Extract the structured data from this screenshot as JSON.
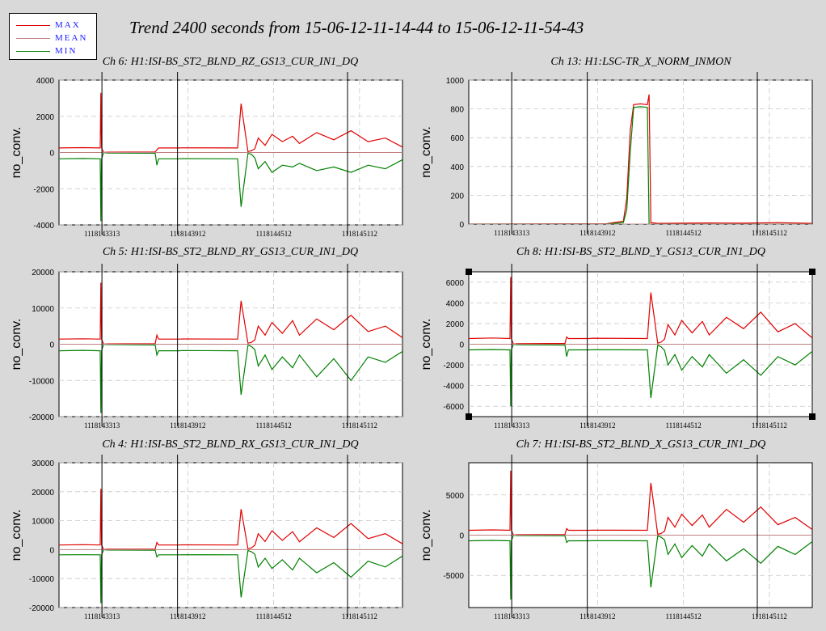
{
  "title": "Trend 2400 seconds from 15-06-12-11-14-44 to 15-06-12-11-54-43",
  "legend": [
    {
      "label": "MAX",
      "color": "#e00000"
    },
    {
      "label": "MEAN",
      "color": "#c08080"
    },
    {
      "label": "MIN",
      "color": "#008000"
    }
  ],
  "colors": {
    "max": "#e00000",
    "mean": "#c08080",
    "min": "#008000",
    "background": "#d9d9d9",
    "grid": "#c8c8c8"
  },
  "chart_data": [
    {
      "type": "line",
      "title": "Ch 6: H1:ISI-BS_ST2_BLND_RZ_GS13_CUR_IN1_DQ",
      "ylabel": "no_conv.",
      "ylim": [
        -4000,
        4000
      ],
      "yticks": [
        "4000",
        "2000",
        "0",
        "-2000",
        "-4000"
      ],
      "xticks": [
        "1118143313",
        "1118143912",
        "1118144512",
        "1118145112"
      ],
      "series": [
        {
          "name": "MAX",
          "x": [
            0,
            0.07,
            0.12,
            0.122,
            0.124,
            0.13,
            0.14,
            0.28,
            0.285,
            0.29,
            0.35,
            0.36,
            0.52,
            0.53,
            0.55,
            0.56,
            0.57,
            0.58,
            0.6,
            0.62,
            0.65,
            0.68,
            0.7,
            0.75,
            0.8,
            0.85,
            0.9,
            0.95,
            1.0
          ],
          "values": [
            250,
            270,
            250,
            3300,
            250,
            0,
            20,
            30,
            150,
            250,
            250,
            260,
            250,
            2700,
            50,
            100,
            200,
            800,
            400,
            1000,
            600,
            900,
            500,
            1100,
            700,
            1200,
            600,
            800,
            300
          ]
        },
        {
          "name": "MIN",
          "x": [
            0,
            0.07,
            0.12,
            0.122,
            0.124,
            0.13,
            0.14,
            0.28,
            0.285,
            0.29,
            0.35,
            0.36,
            0.52,
            0.53,
            0.55,
            0.56,
            0.57,
            0.58,
            0.6,
            0.62,
            0.65,
            0.68,
            0.7,
            0.75,
            0.8,
            0.85,
            0.9,
            0.95,
            1.0
          ],
          "values": [
            -350,
            -330,
            -350,
            -3800,
            -350,
            0,
            -30,
            -40,
            -700,
            -350,
            -350,
            -340,
            -350,
            -3000,
            -50,
            -100,
            -300,
            -900,
            -500,
            -1100,
            -700,
            -800,
            -600,
            -1000,
            -800,
            -1100,
            -700,
            -900,
            -400
          ]
        }
      ]
    },
    {
      "type": "line",
      "title": "Ch 13: H1:LSC-TR_X_NORM_INMON",
      "ylabel": "no_conv.",
      "ylim": [
        0,
        1000
      ],
      "yticks": [
        "1000",
        "800",
        "600",
        "400",
        "200",
        "0"
      ],
      "xticks": [
        "1118143313",
        "1118143912",
        "1118144512",
        "1118145112"
      ],
      "series": [
        {
          "name": "MAX",
          "x": [
            0,
            0.4,
            0.45,
            0.46,
            0.47,
            0.48,
            0.5,
            0.52,
            0.525,
            0.53,
            0.55,
            0.7,
            0.8,
            0.9,
            1.0
          ],
          "values": [
            0,
            2,
            20,
            180,
            650,
            830,
            835,
            830,
            900,
            10,
            5,
            8,
            6,
            10,
            5
          ]
        },
        {
          "name": "MIN",
          "x": [
            0,
            0.4,
            0.45,
            0.46,
            0.47,
            0.48,
            0.5,
            0.52,
            0.525,
            0.53,
            0.55,
            0.7,
            0.8,
            0.9,
            1.0
          ],
          "values": [
            0,
            0,
            10,
            100,
            500,
            810,
            815,
            810,
            0,
            0,
            0,
            0,
            0,
            0,
            0
          ]
        }
      ]
    },
    {
      "type": "line",
      "title": "Ch 5: H1:ISI-BS_ST2_BLND_RY_GS13_CUR_IN1_DQ",
      "ylabel": "no_conv.",
      "ylim": [
        -20000,
        20000
      ],
      "yticks": [
        "20000",
        "10000",
        "0",
        "-10000",
        "-20000"
      ],
      "xticks": [
        "1118143313",
        "1118143912",
        "1118144512",
        "1118145112"
      ],
      "series": [
        {
          "name": "MAX",
          "x": [
            0,
            0.07,
            0.12,
            0.122,
            0.124,
            0.13,
            0.14,
            0.28,
            0.285,
            0.29,
            0.35,
            0.36,
            0.52,
            0.53,
            0.55,
            0.56,
            0.57,
            0.58,
            0.6,
            0.62,
            0.65,
            0.68,
            0.7,
            0.75,
            0.8,
            0.85,
            0.9,
            0.95,
            1.0
          ],
          "values": [
            1400,
            1500,
            1400,
            17000,
            1400,
            0,
            100,
            150,
            2500,
            1400,
            1400,
            1450,
            1400,
            12000,
            300,
            500,
            1200,
            5000,
            2500,
            6000,
            3000,
            6500,
            2500,
            7000,
            4000,
            8000,
            3500,
            5000,
            1800
          ]
        },
        {
          "name": "MIN",
          "x": [
            0,
            0.07,
            0.12,
            0.122,
            0.124,
            0.13,
            0.14,
            0.28,
            0.285,
            0.29,
            0.35,
            0.36,
            0.52,
            0.53,
            0.55,
            0.56,
            0.57,
            0.58,
            0.6,
            0.62,
            0.65,
            0.68,
            0.7,
            0.75,
            0.8,
            0.85,
            0.9,
            0.95,
            1.0
          ],
          "values": [
            -1800,
            -1700,
            -1800,
            -19000,
            -1800,
            0,
            -100,
            -200,
            -3000,
            -1800,
            -1800,
            -1750,
            -1800,
            -14000,
            -300,
            -600,
            -1500,
            -6000,
            -3000,
            -7000,
            -3500,
            -6500,
            -3000,
            -9000,
            -4000,
            -10000,
            -3500,
            -5000,
            -2000
          ]
        }
      ]
    },
    {
      "type": "line",
      "title": "Ch 8: H1:ISI-BS_ST2_BLND_Y_GS13_CUR_IN1_DQ",
      "ylabel": "no_conv.",
      "ylim": [
        -7000,
        7000
      ],
      "yticks": [
        "6000",
        "4000",
        "2000",
        "0",
        "-2000",
        "-4000",
        "-6000"
      ],
      "xticks": [
        "1118143313",
        "1118143912",
        "1118144512",
        "1118145112"
      ],
      "series": [
        {
          "name": "MAX",
          "x": [
            0,
            0.07,
            0.12,
            0.122,
            0.124,
            0.13,
            0.14,
            0.28,
            0.285,
            0.29,
            0.35,
            0.36,
            0.52,
            0.53,
            0.55,
            0.56,
            0.57,
            0.58,
            0.6,
            0.62,
            0.65,
            0.68,
            0.7,
            0.75,
            0.8,
            0.85,
            0.9,
            0.95,
            1.0
          ],
          "values": [
            550,
            600,
            550,
            6500,
            550,
            0,
            50,
            80,
            700,
            550,
            550,
            580,
            550,
            5000,
            100,
            200,
            500,
            1900,
            900,
            2300,
            1100,
            2200,
            900,
            2600,
            1500,
            3100,
            1200,
            2000,
            600
          ]
        },
        {
          "name": "MIN",
          "x": [
            0,
            0.07,
            0.12,
            0.122,
            0.124,
            0.13,
            0.14,
            0.28,
            0.285,
            0.29,
            0.35,
            0.36,
            0.52,
            0.53,
            0.55,
            0.56,
            0.57,
            0.58,
            0.6,
            0.62,
            0.65,
            0.68,
            0.7,
            0.75,
            0.8,
            0.85,
            0.9,
            0.95,
            1.0
          ],
          "values": [
            -550,
            -520,
            -550,
            -6000,
            -550,
            0,
            -50,
            -80,
            -1200,
            -550,
            -550,
            -530,
            -550,
            -5200,
            -100,
            -250,
            -600,
            -2000,
            -1000,
            -2500,
            -1200,
            -2200,
            -1000,
            -2800,
            -1500,
            -3000,
            -1200,
            -2000,
            -700
          ]
        }
      ]
    },
    {
      "type": "line",
      "title": "Ch 4: H1:ISI-BS_ST2_BLND_RX_GS13_CUR_IN1_DQ",
      "ylabel": "no_conv.",
      "ylim": [
        -20000,
        30000
      ],
      "yticks": [
        "30000",
        "20000",
        "10000",
        "0",
        "-10000",
        "-20000"
      ],
      "xticks": [
        "1118143313",
        "1118143912",
        "1118144512",
        "1118145112"
      ],
      "series": [
        {
          "name": "MAX",
          "x": [
            0,
            0.07,
            0.12,
            0.122,
            0.124,
            0.13,
            0.14,
            0.28,
            0.285,
            0.29,
            0.35,
            0.36,
            0.52,
            0.53,
            0.55,
            0.56,
            0.57,
            0.58,
            0.6,
            0.62,
            0.65,
            0.68,
            0.7,
            0.75,
            0.8,
            0.85,
            0.9,
            0.95,
            1.0
          ],
          "values": [
            1600,
            1700,
            1600,
            21000,
            1600,
            0,
            150,
            200,
            2500,
            1600,
            1600,
            1650,
            1600,
            14000,
            300,
            600,
            1500,
            5500,
            2800,
            6500,
            3200,
            6200,
            2700,
            7500,
            4200,
            9000,
            3800,
            5500,
            2000
          ]
        },
        {
          "name": "MIN",
          "x": [
            0,
            0.07,
            0.12,
            0.122,
            0.124,
            0.13,
            0.14,
            0.28,
            0.285,
            0.29,
            0.35,
            0.36,
            0.52,
            0.53,
            0.55,
            0.56,
            0.57,
            0.58,
            0.6,
            0.62,
            0.65,
            0.68,
            0.7,
            0.75,
            0.8,
            0.85,
            0.9,
            0.95,
            1.0
          ],
          "values": [
            -1800,
            -1750,
            -1800,
            -18500,
            -1800,
            0,
            -150,
            -200,
            -2500,
            -1800,
            -1800,
            -1750,
            -1800,
            -16500,
            -300,
            -700,
            -1600,
            -6000,
            -3000,
            -6500,
            -3500,
            -7000,
            -3000,
            -8000,
            -4500,
            -9500,
            -4000,
            -6000,
            -2200
          ]
        }
      ]
    },
    {
      "type": "line",
      "title": "Ch 7: H1:ISI-BS_ST2_BLND_X_GS13_CUR_IN1_DQ",
      "ylabel": "no_conv.",
      "ylim": [
        -9000,
        9000
      ],
      "yticks": [
        "5000",
        "0",
        "-5000"
      ],
      "xticks": [
        "1118143313",
        "1118143912",
        "1118144512",
        "1118145112"
      ],
      "series": [
        {
          "name": "MAX",
          "x": [
            0,
            0.07,
            0.12,
            0.122,
            0.124,
            0.13,
            0.14,
            0.28,
            0.285,
            0.29,
            0.35,
            0.36,
            0.52,
            0.53,
            0.55,
            0.56,
            0.57,
            0.58,
            0.6,
            0.62,
            0.65,
            0.68,
            0.7,
            0.75,
            0.8,
            0.85,
            0.9,
            0.95,
            1.0
          ],
          "values": [
            600,
            650,
            600,
            8000,
            600,
            0,
            50,
            80,
            800,
            600,
            600,
            620,
            600,
            6500,
            100,
            200,
            500,
            2200,
            1000,
            2600,
            1200,
            2500,
            1000,
            3200,
            1600,
            3500,
            1300,
            2200,
            700
          ]
        },
        {
          "name": "MIN",
          "x": [
            0,
            0.07,
            0.12,
            0.122,
            0.124,
            0.13,
            0.14,
            0.28,
            0.285,
            0.29,
            0.35,
            0.36,
            0.52,
            0.53,
            0.55,
            0.56,
            0.57,
            0.58,
            0.6,
            0.62,
            0.65,
            0.68,
            0.7,
            0.75,
            0.8,
            0.85,
            0.9,
            0.95,
            1.0
          ],
          "values": [
            -700,
            -650,
            -700,
            -8000,
            -700,
            0,
            -50,
            -80,
            -900,
            -700,
            -700,
            -680,
            -700,
            -6500,
            -100,
            -250,
            -600,
            -2400,
            -1100,
            -2800,
            -1300,
            -2600,
            -1100,
            -3200,
            -1700,
            -3500,
            -1400,
            -2400,
            -800
          ]
        }
      ]
    }
  ]
}
